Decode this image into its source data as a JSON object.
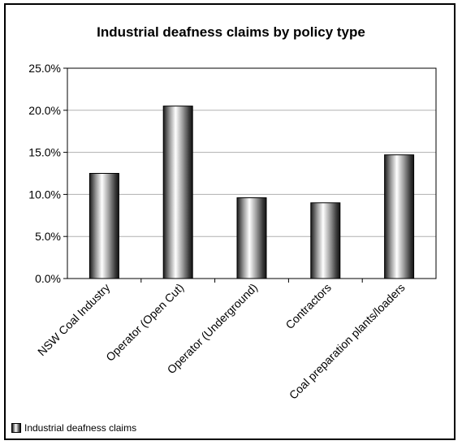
{
  "chart_data": {
    "type": "bar",
    "title": "Industrial deafness claims by policy type",
    "categories": [
      "NSW Coal Industry",
      "Operator (Open Cut)",
      "Operator (Underground)",
      "Contractors",
      "Coal preparation plants/loaders"
    ],
    "series": [
      {
        "name": "Industrial deafness claims",
        "values": [
          12.5,
          20.5,
          9.6,
          9.0,
          14.7
        ]
      }
    ],
    "ylim": [
      0,
      25
    ],
    "yticks": [
      "0.0%",
      "5.0%",
      "10.0%",
      "15.0%",
      "20.0%",
      "25.0%"
    ],
    "xlabel": "",
    "ylabel": "",
    "grid": true,
    "legend": "bottom-left"
  }
}
